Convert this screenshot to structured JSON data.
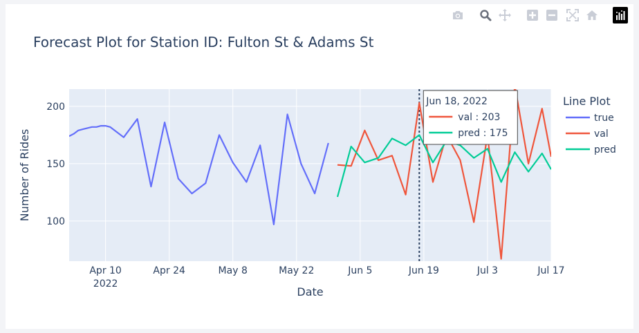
{
  "modebar": {
    "icons": [
      "camera-icon",
      "zoom-icon",
      "pan-icon",
      "zoom-in-icon",
      "zoom-out-icon",
      "autoscale-icon",
      "home-icon",
      "plotly-logo-icon"
    ]
  },
  "chart_data": {
    "type": "line",
    "title": "Forecast Plot for Station ID: Fulton St & Adams St",
    "xlabel": "Date",
    "ylabel": "Number of Rides",
    "legend_title": "Line Plot",
    "legend_position": "right",
    "xlim": [
      "2022-04-02",
      "2022-07-17"
    ],
    "ylim": [
      65,
      215
    ],
    "grid": true,
    "yticks": [
      100,
      150,
      200
    ],
    "xticks": [
      {
        "date": "2022-04-10",
        "label": "Apr 10",
        "sublabel": "2022"
      },
      {
        "date": "2022-04-24",
        "label": "Apr 24"
      },
      {
        "date": "2022-05-08",
        "label": "May 8"
      },
      {
        "date": "2022-05-22",
        "label": "May 22"
      },
      {
        "date": "2022-06-05",
        "label": "Jun 5"
      },
      {
        "date": "2022-06-19",
        "label": "Jun 19"
      },
      {
        "date": "2022-07-03",
        "label": "Jul 3"
      },
      {
        "date": "2022-07-17",
        "label": "Jul 17"
      }
    ],
    "series": [
      {
        "name": "true",
        "color": "#636efa",
        "x": [
          "2022-04-02",
          "2022-04-03",
          "2022-04-04",
          "2022-04-05",
          "2022-04-06",
          "2022-04-07",
          "2022-04-08",
          "2022-04-09",
          "2022-04-10",
          "2022-04-11",
          "2022-04-14",
          "2022-04-17",
          "2022-04-20",
          "2022-04-23",
          "2022-04-26",
          "2022-04-29",
          "2022-05-02",
          "2022-05-05",
          "2022-05-08",
          "2022-05-11",
          "2022-05-14",
          "2022-05-17",
          "2022-05-20",
          "2022-05-23",
          "2022-05-26",
          "2022-05-29"
        ],
        "values": [
          174,
          176,
          179,
          180,
          181,
          182,
          182,
          183,
          183,
          182,
          173,
          189,
          130,
          186,
          137,
          124,
          133,
          175,
          151,
          134,
          166,
          97,
          193,
          150,
          124,
          168
        ]
      },
      {
        "name": "val",
        "color": "#ef553b",
        "x": [
          "2022-05-31",
          "2022-06-03",
          "2022-06-06",
          "2022-06-09",
          "2022-06-12",
          "2022-06-15",
          "2022-06-18",
          "2022-06-21",
          "2022-06-24",
          "2022-06-27",
          "2022-06-30",
          "2022-07-03",
          "2022-07-06",
          "2022-07-09",
          "2022-07-12",
          "2022-07-15",
          "2022-07-17"
        ],
        "values": [
          149,
          148,
          179,
          153,
          157,
          123,
          203,
          134,
          175,
          153,
          99,
          175,
          67,
          218,
          150,
          198,
          156
        ]
      },
      {
        "name": "pred",
        "color": "#00cc96",
        "x": [
          "2022-05-31",
          "2022-06-03",
          "2022-06-06",
          "2022-06-09",
          "2022-06-12",
          "2022-06-15",
          "2022-06-18",
          "2022-06-21",
          "2022-06-24",
          "2022-06-27",
          "2022-06-30",
          "2022-07-03",
          "2022-07-06",
          "2022-07-09",
          "2022-07-12",
          "2022-07-15",
          "2022-07-17"
        ],
        "values": [
          121,
          165,
          151,
          155,
          172,
          166,
          175,
          151,
          170,
          166,
          155,
          163,
          134,
          160,
          143,
          159,
          145
        ]
      }
    ],
    "hover": {
      "date": "2022-06-18",
      "header": "Jun 18, 2022",
      "rows": [
        {
          "series": "val",
          "text": "val : 203"
        },
        {
          "series": "pred",
          "text": "pred : 175"
        }
      ]
    }
  }
}
